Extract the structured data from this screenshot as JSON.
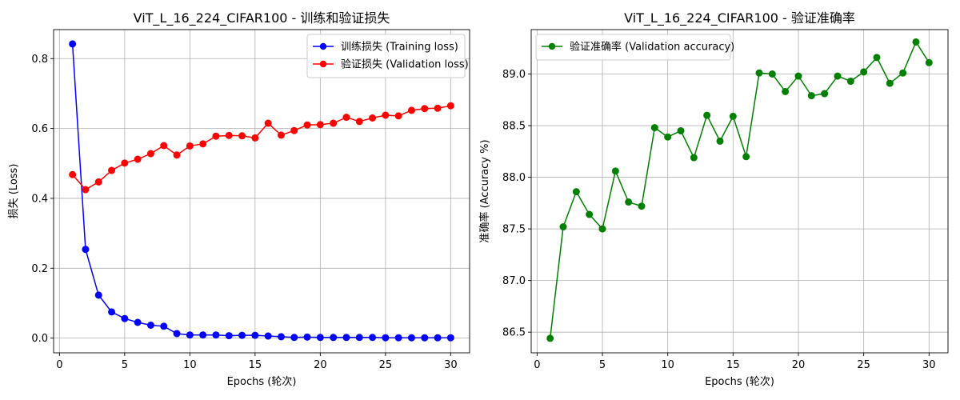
{
  "chart_data": [
    {
      "type": "line",
      "title": "ViT_L_16_224_CIFAR100 - 训练和验证损失",
      "xlabel": "Epochs (轮次)",
      "ylabel": "损失 (Loss)",
      "xlim": [
        -0.45,
        31.45
      ],
      "ylim": [
        -0.042,
        0.883
      ],
      "xticks": [
        0,
        5,
        10,
        15,
        20,
        25,
        30
      ],
      "xtick_labels": [
        "0",
        "5",
        "10",
        "15",
        "20",
        "25",
        "30"
      ],
      "yticks": [
        0.0,
        0.2,
        0.4,
        0.6,
        0.8
      ],
      "ytick_labels": [
        "0.0",
        "0.2",
        "0.4",
        "0.6",
        "0.8"
      ],
      "grid": true,
      "legend_position": "top-right",
      "x": [
        1,
        2,
        3,
        4,
        5,
        6,
        7,
        8,
        9,
        10,
        11,
        12,
        13,
        14,
        15,
        16,
        17,
        18,
        19,
        20,
        21,
        22,
        23,
        24,
        25,
        26,
        27,
        28,
        29,
        30
      ],
      "series": [
        {
          "name": "训练损失 (Training loss)",
          "color": "#0000ff",
          "values": [
            0.842,
            0.254,
            0.123,
            0.075,
            0.056,
            0.045,
            0.037,
            0.034,
            0.013,
            0.009,
            0.009,
            0.009,
            0.007,
            0.008,
            0.008,
            0.006,
            0.004,
            0.002,
            0.003,
            0.002,
            0.002,
            0.002,
            0.002,
            0.002,
            0.001,
            0.001,
            0.001,
            0.001,
            0.001,
            0.001
          ]
        },
        {
          "name": "验证损失 (Validation loss)",
          "color": "#ff0000",
          "values": [
            0.468,
            0.425,
            0.447,
            0.48,
            0.501,
            0.512,
            0.528,
            0.551,
            0.524,
            0.55,
            0.556,
            0.578,
            0.58,
            0.579,
            0.573,
            0.615,
            0.581,
            0.594,
            0.61,
            0.611,
            0.615,
            0.632,
            0.62,
            0.63,
            0.638,
            0.636,
            0.652,
            0.657,
            0.658,
            0.665
          ]
        }
      ]
    },
    {
      "type": "line",
      "title": "ViT_L_16_224_CIFAR100 - 验证准确率",
      "xlabel": "Epochs (轮次)",
      "ylabel": "准确率 (Accuracy %)",
      "xlim": [
        -0.45,
        31.45
      ],
      "ylim": [
        86.3,
        89.43
      ],
      "xticks": [
        0,
        5,
        10,
        15,
        20,
        25,
        30
      ],
      "xtick_labels": [
        "0",
        "5",
        "10",
        "15",
        "20",
        "25",
        "30"
      ],
      "yticks": [
        86.5,
        87.0,
        87.5,
        88.0,
        88.5,
        89.0
      ],
      "ytick_labels": [
        "86.5",
        "87.0",
        "87.5",
        "88.0",
        "88.5",
        "89.0"
      ],
      "grid": true,
      "legend_position": "top-left",
      "x": [
        1,
        2,
        3,
        4,
        5,
        6,
        7,
        8,
        9,
        10,
        11,
        12,
        13,
        14,
        15,
        16,
        17,
        18,
        19,
        20,
        21,
        22,
        23,
        24,
        25,
        26,
        27,
        28,
        29,
        30
      ],
      "series": [
        {
          "name": "验证准确率 (Validation accuracy)",
          "color": "#008000",
          "values": [
            86.44,
            87.52,
            87.86,
            87.64,
            87.5,
            88.06,
            87.76,
            87.72,
            88.48,
            88.39,
            88.45,
            88.19,
            88.6,
            88.35,
            88.59,
            88.2,
            89.01,
            89.0,
            88.83,
            88.98,
            88.79,
            88.81,
            88.98,
            88.93,
            89.02,
            89.16,
            88.91,
            89.01,
            89.31,
            89.11
          ]
        }
      ]
    }
  ]
}
